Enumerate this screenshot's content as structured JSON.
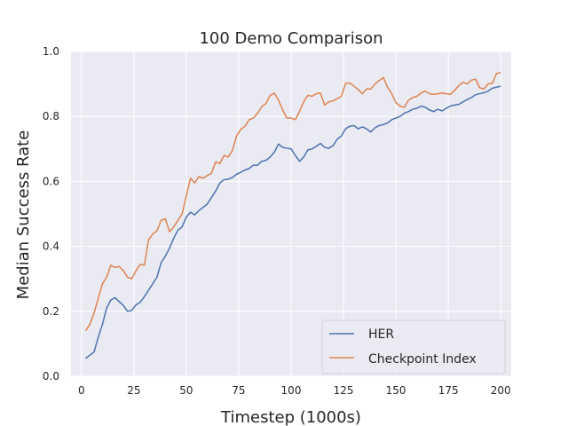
{
  "chart_data": {
    "type": "line",
    "title": "100 Demo Comparison",
    "xlabel": "Timestep (1000s)",
    "ylabel": "Median Success Rate",
    "xlim": [
      -5,
      205
    ],
    "ylim": [
      0,
      1.0
    ],
    "xticks": [
      0,
      25,
      50,
      75,
      100,
      125,
      150,
      175,
      200
    ],
    "yticks": [
      0.0,
      0.2,
      0.4,
      0.6,
      0.8,
      1.0
    ],
    "ytick_labels": [
      "0.0",
      "0.2",
      "0.4",
      "0.6",
      "0.8",
      "1.0"
    ],
    "grid": true,
    "legend_position": "lower-right",
    "series": [
      {
        "name": "HER",
        "color": "#4c72b0",
        "x": [
          2,
          4,
          6,
          8,
          10,
          12,
          14,
          16,
          18,
          20,
          22,
          24,
          26,
          28,
          30,
          32,
          34,
          36,
          38,
          40,
          42,
          44,
          46,
          48,
          50,
          52,
          54,
          56,
          58,
          60,
          62,
          64,
          66,
          68,
          70,
          72,
          74,
          76,
          78,
          80,
          82,
          84,
          86,
          88,
          90,
          92,
          94,
          96,
          98,
          100,
          102,
          104,
          106,
          108,
          110,
          112,
          114,
          116,
          118,
          120,
          122,
          124,
          126,
          128,
          130,
          132,
          134,
          136,
          138,
          140,
          142,
          144,
          146,
          148,
          150,
          152,
          154,
          156,
          158,
          160,
          162,
          164,
          166,
          168,
          170,
          172,
          174,
          176,
          178,
          180,
          182,
          184,
          186,
          188,
          190,
          192,
          194,
          196,
          198,
          200
        ],
        "values": [
          0.055,
          0.065,
          0.075,
          0.12,
          0.16,
          0.21,
          0.235,
          0.242,
          0.23,
          0.218,
          0.2,
          0.203,
          0.22,
          0.228,
          0.245,
          0.265,
          0.285,
          0.305,
          0.35,
          0.37,
          0.395,
          0.425,
          0.45,
          0.46,
          0.49,
          0.505,
          0.497,
          0.51,
          0.52,
          0.53,
          0.55,
          0.57,
          0.595,
          0.605,
          0.607,
          0.612,
          0.622,
          0.628,
          0.635,
          0.64,
          0.65,
          0.65,
          0.662,
          0.665,
          0.675,
          0.69,
          0.715,
          0.705,
          0.702,
          0.7,
          0.68,
          0.662,
          0.675,
          0.697,
          0.7,
          0.708,
          0.717,
          0.705,
          0.702,
          0.71,
          0.73,
          0.74,
          0.762,
          0.77,
          0.772,
          0.762,
          0.768,
          0.762,
          0.752,
          0.765,
          0.772,
          0.775,
          0.78,
          0.79,
          0.795,
          0.8,
          0.81,
          0.815,
          0.822,
          0.825,
          0.832,
          0.828,
          0.82,
          0.815,
          0.822,
          0.817,
          0.825,
          0.832,
          0.835,
          0.837,
          0.845,
          0.852,
          0.858,
          0.867,
          0.87,
          0.873,
          0.878,
          0.887,
          0.89,
          0.893
        ]
      },
      {
        "name": "Checkpoint Index",
        "color": "#dd8452",
        "x": [
          2,
          4,
          6,
          8,
          10,
          12,
          14,
          16,
          18,
          20,
          22,
          24,
          26,
          28,
          30,
          32,
          34,
          36,
          38,
          40,
          42,
          44,
          46,
          48,
          50,
          52,
          54,
          56,
          58,
          60,
          62,
          64,
          66,
          68,
          70,
          72,
          74,
          76,
          78,
          80,
          82,
          84,
          86,
          88,
          90,
          92,
          94,
          96,
          98,
          100,
          102,
          104,
          106,
          108,
          110,
          112,
          114,
          116,
          118,
          120,
          122,
          124,
          126,
          128,
          130,
          132,
          134,
          136,
          138,
          140,
          142,
          144,
          146,
          148,
          150,
          152,
          154,
          156,
          158,
          160,
          162,
          164,
          166,
          168,
          170,
          172,
          174,
          176,
          178,
          180,
          182,
          184,
          186,
          188,
          190,
          192,
          194,
          196,
          198,
          200
        ],
        "values": [
          0.14,
          0.16,
          0.195,
          0.24,
          0.285,
          0.305,
          0.342,
          0.335,
          0.338,
          0.325,
          0.305,
          0.3,
          0.325,
          0.345,
          0.342,
          0.42,
          0.438,
          0.448,
          0.48,
          0.485,
          0.445,
          0.46,
          0.48,
          0.5,
          0.555,
          0.61,
          0.595,
          0.615,
          0.61,
          0.618,
          0.625,
          0.66,
          0.655,
          0.68,
          0.675,
          0.695,
          0.74,
          0.76,
          0.77,
          0.79,
          0.795,
          0.81,
          0.83,
          0.84,
          0.865,
          0.872,
          0.85,
          0.82,
          0.795,
          0.795,
          0.79,
          0.815,
          0.845,
          0.865,
          0.862,
          0.87,
          0.872,
          0.835,
          0.845,
          0.848,
          0.855,
          0.862,
          0.902,
          0.903,
          0.893,
          0.883,
          0.87,
          0.885,
          0.884,
          0.9,
          0.91,
          0.92,
          0.89,
          0.87,
          0.842,
          0.832,
          0.828,
          0.85,
          0.858,
          0.862,
          0.872,
          0.878,
          0.87,
          0.868,
          0.87,
          0.872,
          0.87,
          0.868,
          0.88,
          0.895,
          0.905,
          0.9,
          0.912,
          0.915,
          0.888,
          0.885,
          0.9,
          0.902,
          0.932,
          0.935
        ]
      }
    ]
  }
}
